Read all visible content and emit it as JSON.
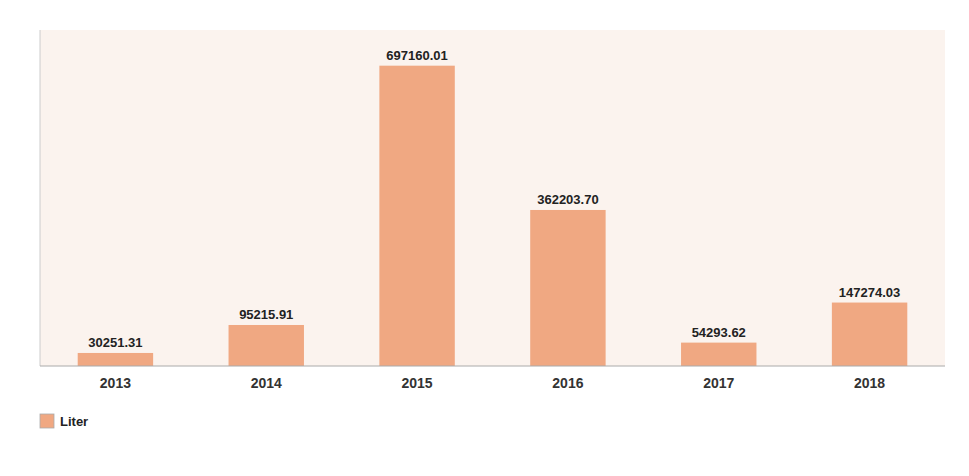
{
  "chart_data": {
    "type": "bar",
    "categories": [
      "2013",
      "2014",
      "2015",
      "2016",
      "2017",
      "2018"
    ],
    "series": [
      {
        "name": "Liter",
        "color": "#F0A882",
        "values": [
          30251.31,
          95215.91,
          697160.01,
          362203.7,
          54293.62,
          147274.03
        ],
        "value_labels": [
          "30251.31",
          "95215.91",
          "697160.01",
          "362203.70",
          "54293.62",
          "147274.03"
        ]
      }
    ],
    "ylim": [
      0,
      780000
    ],
    "tick_labels": "x",
    "data_labels": true,
    "legend": "bottom"
  }
}
